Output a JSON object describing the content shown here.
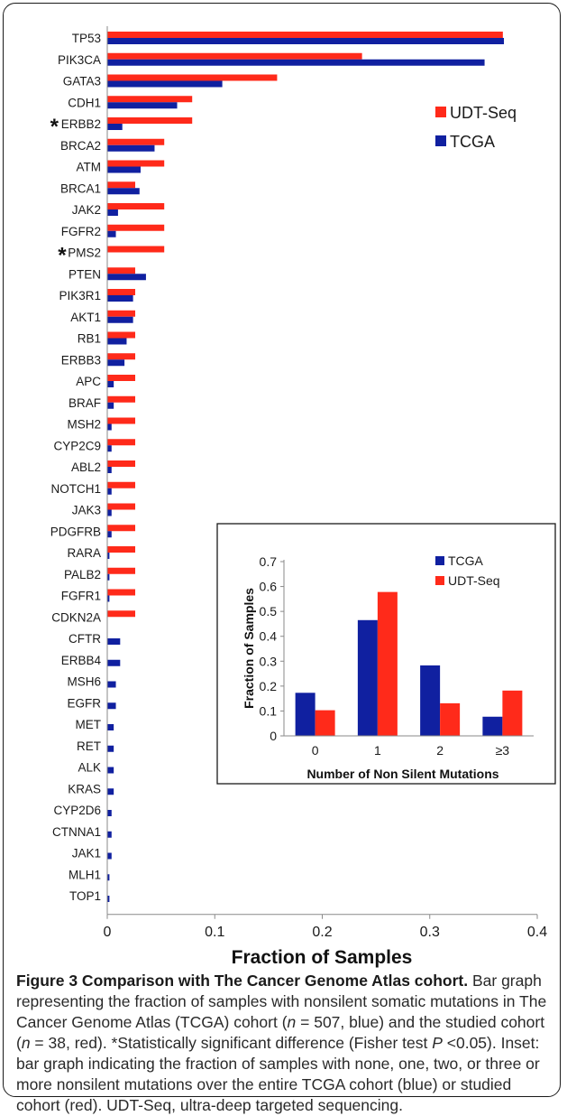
{
  "chart_data": [
    {
      "type": "bar",
      "orientation": "horizontal",
      "categories": [
        "TP53",
        "PIK3CA",
        "GATA3",
        "CDH1",
        "ERBB2",
        "BRCA2",
        "ATM",
        "BRCA1",
        "JAK2",
        "FGFR2",
        "PMS2",
        "PTEN",
        "PIK3R1",
        "AKT1",
        "RB1",
        "ERBB3",
        "APC",
        "BRAF",
        "MSH2",
        "CYP2C9",
        "ABL2",
        "NOTCH1",
        "JAK3",
        "PDGFRB",
        "RARA",
        "PALB2",
        "FGFR1",
        "CDKN2A",
        "CFTR",
        "ERBB4",
        "MSH6",
        "EGFR",
        "MET",
        "RET",
        "ALK",
        "KRAS",
        "CYP2D6",
        "CTNNA1",
        "JAK1",
        "MLH1",
        "TOP1"
      ],
      "asterisk_categories": [
        "ERBB2",
        "PMS2"
      ],
      "asterisk_mark": "*",
      "series": [
        {
          "name": "UDT-Seq",
          "color": "#ff2a1a",
          "values": [
            0.368,
            0.237,
            0.158,
            0.079,
            0.079,
            0.053,
            0.053,
            0.026,
            0.053,
            0.053,
            0.053,
            0.026,
            0.026,
            0.026,
            0.026,
            0.026,
            0.026,
            0.026,
            0.026,
            0.026,
            0.026,
            0.026,
            0.026,
            0.026,
            0.026,
            0.026,
            0.026,
            0.026,
            0,
            0,
            0,
            0,
            0,
            0,
            0,
            0,
            0,
            0,
            0,
            0,
            0
          ]
        },
        {
          "name": "TCGA",
          "color": "#1020a0",
          "values": [
            0.369,
            0.351,
            0.107,
            0.065,
            0.014,
            0.044,
            0.031,
            0.03,
            0.01,
            0.008,
            0,
            0.036,
            0.024,
            0.024,
            0.018,
            0.016,
            0.006,
            0.006,
            0.004,
            0.004,
            0.004,
            0.004,
            0.004,
            0.004,
            0.002,
            0.002,
            0.002,
            0,
            0.012,
            0.012,
            0.008,
            0.008,
            0.006,
            0.006,
            0.006,
            0.006,
            0.004,
            0.004,
            0.004,
            0.002,
            0.002
          ]
        }
      ],
      "xlabel": "Fraction of Samples",
      "ylabel": "",
      "xlim": [
        0,
        0.4
      ],
      "xticks": [
        "0",
        "0.1",
        "0.2",
        "0.3",
        "0.4"
      ],
      "legend_position": "top-right",
      "grid": false
    },
    {
      "type": "bar",
      "categories": [
        "0",
        "1",
        "2",
        "≥3"
      ],
      "series": [
        {
          "name": "TCGA",
          "color": "#1020a0",
          "values": [
            0.173,
            0.465,
            0.283,
            0.077
          ]
        },
        {
          "name": "UDT-Seq",
          "color": "#ff2a1a",
          "values": [
            0.103,
            0.578,
            0.131,
            0.182
          ]
        }
      ],
      "xlabel": "Number of Non Silent Mutations",
      "ylabel": "Fraction of Samples",
      "ylim": [
        0,
        0.7
      ],
      "yticks": [
        "0",
        "0.1",
        "0.2",
        "0.3",
        "0.4",
        "0.5",
        "0.6",
        "0.7"
      ],
      "legend_position": "top-right",
      "grid": false
    }
  ],
  "caption": {
    "title": "Figure 3 Comparison with The Cancer Genome Atlas cohort.",
    "text_1": "Bar graph representing the fraction of samples with nonsilent somatic mutations in The Cancer Genome Atlas (TCGA) cohort (",
    "n_symbol": "n",
    "text_2": " = 507, blue) and the studied cohort (",
    "text_3": " = 38, red). *Statistically significant difference (Fisher test ",
    "p_symbol": "P",
    "text_4": " <0.05). Inset: bar graph indicating the fraction of samples with none, one, two, or three or more nonsilent mutations over the entire TCGA cohort (blue) or studied cohort (red). UDT-Seq, ultra-deep targeted sequencing."
  }
}
